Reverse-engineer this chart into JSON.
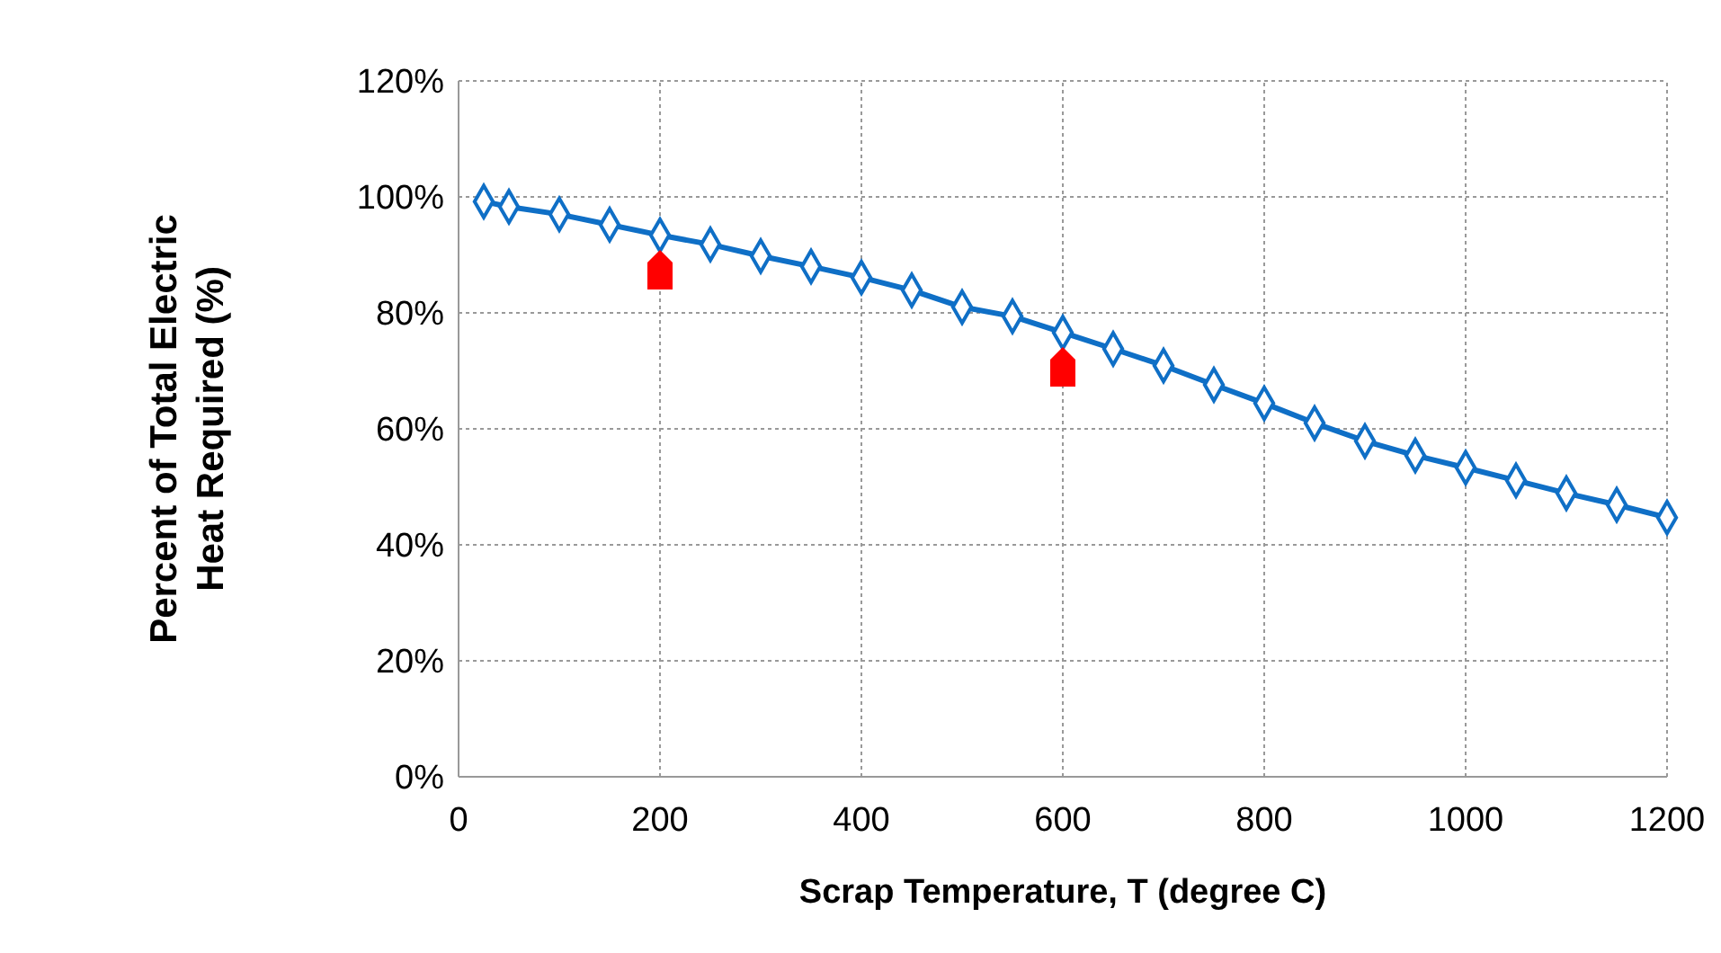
{
  "chart_data": {
    "type": "line",
    "xlabel": "Scrap Temperature, T (degree C)",
    "ylabel": "Percent of Total Electric Heat Required (%)",
    "x": [
      25,
      50,
      100,
      150,
      200,
      250,
      300,
      350,
      400,
      450,
      500,
      550,
      600,
      650,
      700,
      750,
      800,
      850,
      900,
      950,
      1000,
      1050,
      1100,
      1150,
      1200
    ],
    "series": [
      {
        "color": "#0f6fc6",
        "values": [
          99.2,
          98.3,
          97.0,
          95.2,
          93.4,
          91.8,
          89.8,
          88.0,
          86.1,
          83.9,
          81.0,
          79.4,
          76.6,
          73.8,
          70.9,
          67.6,
          64.4,
          61.0,
          57.9,
          55.4,
          53.3,
          51.1,
          48.9,
          46.9,
          44.7
        ]
      }
    ],
    "xlim": [
      0,
      1200
    ],
    "xticks": [
      0,
      200,
      400,
      600,
      800,
      1000,
      1200
    ],
    "ylim": [
      0,
      120
    ],
    "yticks": [
      {
        "value": 0,
        "label": "0%"
      },
      {
        "value": 20,
        "label": "20%"
      },
      {
        "value": 40,
        "label": "40%"
      },
      {
        "value": 60,
        "label": "60%"
      },
      {
        "value": 80,
        "label": "80%"
      },
      {
        "value": 100,
        "label": "100%"
      },
      {
        "value": 120,
        "label": "120%"
      }
    ],
    "grid": true,
    "marker": "diamond",
    "line_style": "solid"
  }
}
